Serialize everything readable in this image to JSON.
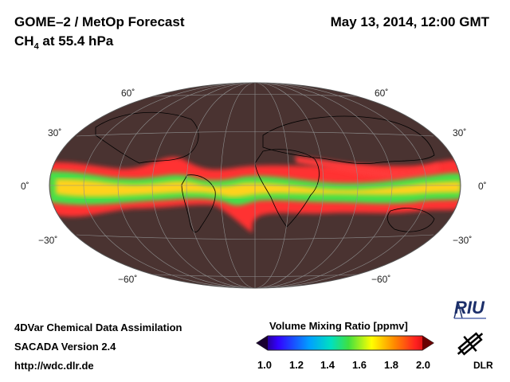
{
  "header": {
    "title": "GOME–2 / MetOp Forecast",
    "species": "CH",
    "species_sub": "4",
    "level": " at 55.4 hPa",
    "datetime": "May 13, 2014, 12:00 GMT"
  },
  "map": {
    "projection": "Hammer-Aitoff / Mollweide",
    "background_color": "#4a3331",
    "grid_color": "#8f8f8f",
    "lat_labels": [
      "60˚",
      "30˚",
      "0˚",
      "−30˚",
      "−60˚"
    ],
    "band_colors": {
      "high": "#ff2a2a",
      "mid": "#ffcc00",
      "low": "#3ddc3d"
    }
  },
  "footer": {
    "line1": "4DVar Chemical Data Assimilation",
    "line2": "SACADA Version 2.4",
    "line3": "http://wdc.dlr.de"
  },
  "colorbar": {
    "title": "Volume Mixing Ratio [ppmv]",
    "ticks": [
      "1.0",
      "1.2",
      "1.4",
      "1.6",
      "1.8",
      "2.0"
    ],
    "colors": [
      "#1a0030",
      "#3300ff",
      "#00a0ff",
      "#00e0c0",
      "#40e040",
      "#ffff00",
      "#ff8800",
      "#ff2020",
      "#b00000"
    ]
  },
  "logos": {
    "riu": "RIU",
    "dlr": "DLR"
  }
}
